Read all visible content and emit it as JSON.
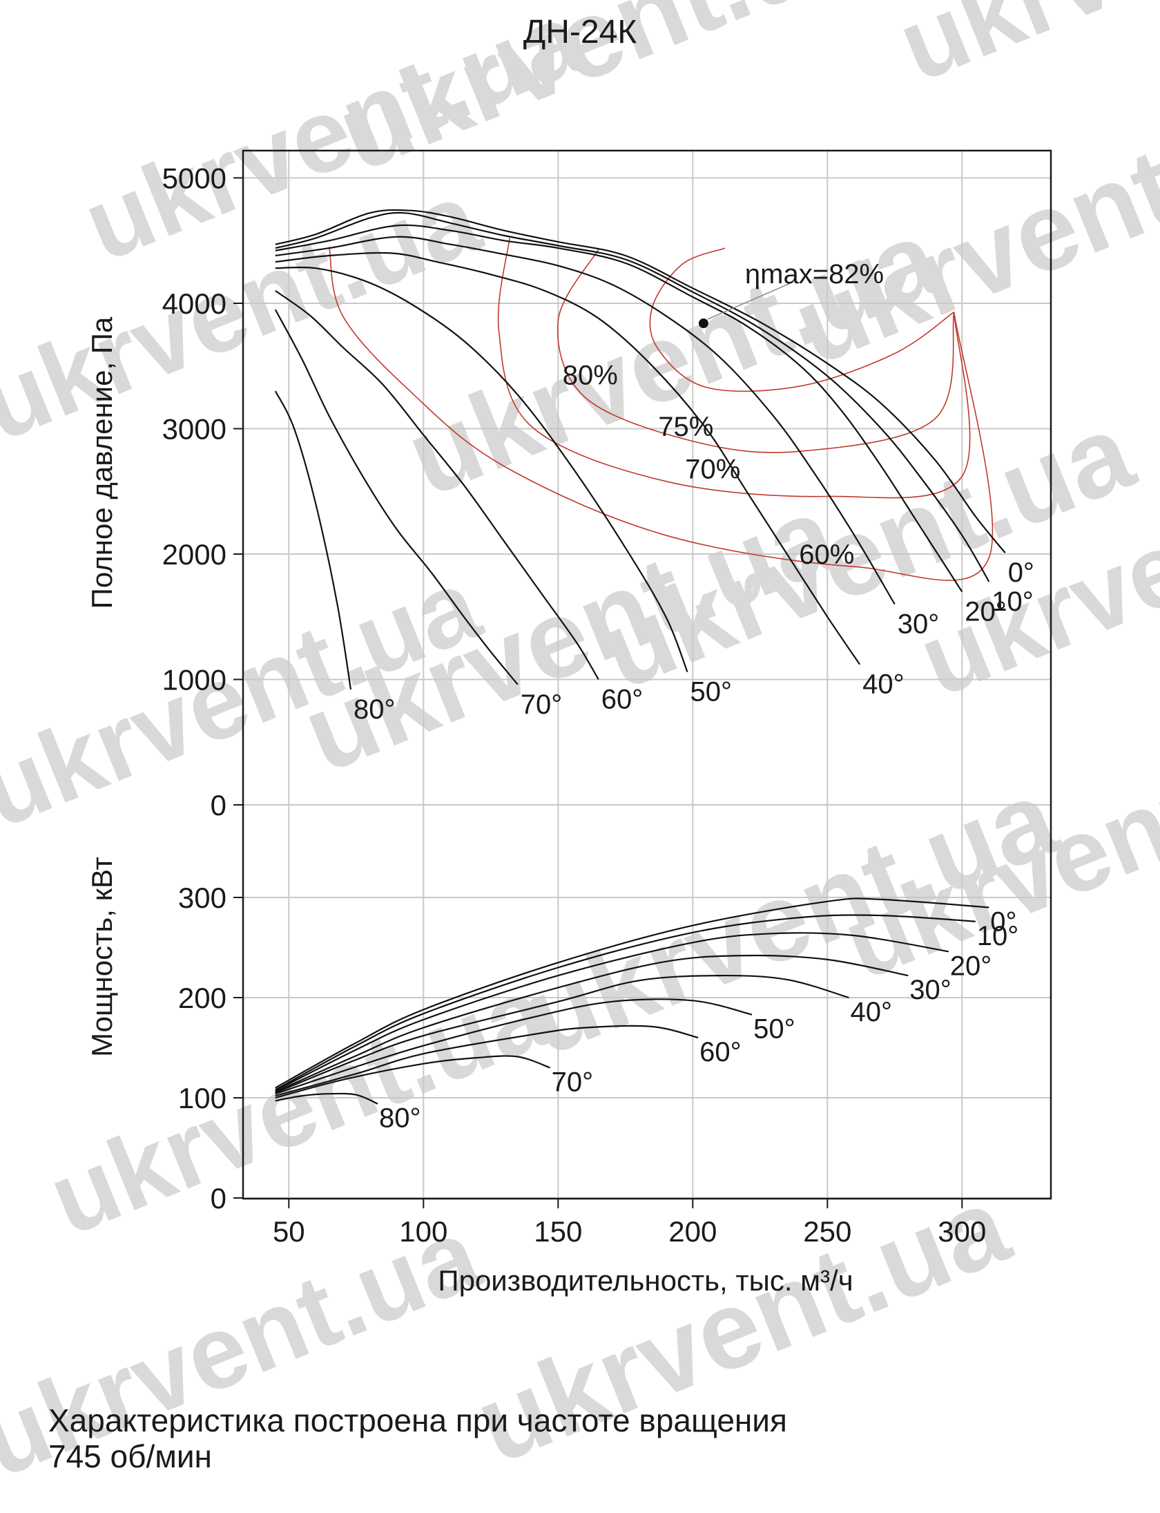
{
  "chart_data": {
    "type": "line",
    "title": "ДН-24К",
    "xlabel": "Производительность, тыс. м³/ч",
    "x_ticks": [
      50,
      100,
      150,
      200,
      250,
      300
    ],
    "xlim": [
      33,
      333
    ],
    "grid": true,
    "pressure": {
      "ylabel": "Полное давление, Па",
      "ylim": [
        0,
        5000
      ],
      "y_ticks": [
        0,
        1000,
        2000,
        3000,
        4000,
        5000
      ],
      "series": [
        {
          "label": "0°",
          "points": [
            [
              45,
              4470
            ],
            [
              60,
              4550
            ],
            [
              80,
              4720
            ],
            [
              95,
              4740
            ],
            [
              110,
              4690
            ],
            [
              130,
              4580
            ],
            [
              150,
              4490
            ],
            [
              175,
              4380
            ],
            [
              200,
              4120
            ],
            [
              225,
              3850
            ],
            [
              250,
              3520
            ],
            [
              270,
              3200
            ],
            [
              290,
              2750
            ],
            [
              305,
              2300
            ],
            [
              316,
              2010
            ]
          ]
        },
        {
          "label": "10°",
          "points": [
            [
              45,
              4440
            ],
            [
              60,
              4520
            ],
            [
              80,
              4680
            ],
            [
              93,
              4720
            ],
            [
              110,
              4640
            ],
            [
              130,
              4540
            ],
            [
              150,
              4460
            ],
            [
              175,
              4350
            ],
            [
              200,
              4090
            ],
            [
              225,
              3800
            ],
            [
              250,
              3420
            ],
            [
              270,
              3000
            ],
            [
              285,
              2600
            ],
            [
              300,
              2150
            ],
            [
              310,
              1780
            ]
          ]
        },
        {
          "label": "20°",
          "points": [
            [
              45,
              4420
            ],
            [
              65,
              4500
            ],
            [
              90,
              4620
            ],
            [
              110,
              4580
            ],
            [
              130,
              4500
            ],
            [
              150,
              4440
            ],
            [
              175,
              4320
            ],
            [
              200,
              4050
            ],
            [
              220,
              3820
            ],
            [
              240,
              3500
            ],
            [
              255,
              3150
            ],
            [
              270,
              2700
            ],
            [
              285,
              2200
            ],
            [
              300,
              1700
            ]
          ]
        },
        {
          "label": "30°",
          "points": [
            [
              45,
              4380
            ],
            [
              65,
              4440
            ],
            [
              90,
              4530
            ],
            [
              110,
              4470
            ],
            [
              130,
              4390
            ],
            [
              150,
              4300
            ],
            [
              170,
              4150
            ],
            [
              190,
              3900
            ],
            [
              210,
              3570
            ],
            [
              230,
              3100
            ],
            [
              245,
              2650
            ],
            [
              260,
              2150
            ],
            [
              275,
              1600
            ]
          ]
        },
        {
          "label": "40°",
          "points": [
            [
              45,
              4330
            ],
            [
              65,
              4380
            ],
            [
              88,
              4400
            ],
            [
              105,
              4330
            ],
            [
              125,
              4230
            ],
            [
              145,
              4100
            ],
            [
              165,
              3880
            ],
            [
              185,
              3500
            ],
            [
              205,
              3000
            ],
            [
              220,
              2500
            ],
            [
              235,
              2000
            ],
            [
              250,
              1500
            ],
            [
              262,
              1120
            ]
          ]
        },
        {
          "label": "50°",
          "points": [
            [
              45,
              4280
            ],
            [
              60,
              4280
            ],
            [
              78,
              4180
            ],
            [
              95,
              4000
            ],
            [
              115,
              3700
            ],
            [
              135,
              3270
            ],
            [
              155,
              2700
            ],
            [
              175,
              2050
            ],
            [
              190,
              1500
            ],
            [
              198,
              1060
            ]
          ]
        },
        {
          "label": "60°",
          "points": [
            [
              45,
              4100
            ],
            [
              58,
              3900
            ],
            [
              70,
              3650
            ],
            [
              85,
              3350
            ],
            [
              100,
              2950
            ],
            [
              115,
              2550
            ],
            [
              130,
              2100
            ],
            [
              145,
              1650
            ],
            [
              157,
              1290
            ],
            [
              165,
              1000
            ]
          ]
        },
        {
          "label": "70°",
          "points": [
            [
              45,
              3950
            ],
            [
              55,
              3550
            ],
            [
              65,
              3100
            ],
            [
              78,
              2600
            ],
            [
              90,
              2200
            ],
            [
              103,
              1850
            ],
            [
              115,
              1500
            ],
            [
              125,
              1220
            ],
            [
              135,
              960
            ]
          ]
        },
        {
          "label": "80°",
          "points": [
            [
              45,
              3300
            ],
            [
              52,
              3000
            ],
            [
              60,
              2400
            ],
            [
              68,
              1600
            ],
            [
              73,
              920
            ]
          ]
        }
      ],
      "efficiency": [
        {
          "label": "80%",
          "points": [
            [
              297,
              3930
            ],
            [
              275,
              3600
            ],
            [
              240,
              3340
            ],
            [
              205,
              3330
            ],
            [
              187,
              3640
            ],
            [
              185,
              3970
            ],
            [
              196,
              4310
            ],
            [
              212,
              4440
            ]
          ]
        },
        {
          "label": "75%",
          "points": [
            [
              297,
              3930
            ],
            [
              290,
              3080
            ],
            [
              240,
              2820
            ],
            [
              200,
              2900
            ],
            [
              160,
              3250
            ],
            [
              150,
              3860
            ],
            [
              165,
              4430
            ]
          ]
        },
        {
          "label": "70%",
          "points": [
            [
              297,
              3930
            ],
            [
              300,
              2620
            ],
            [
              250,
              2460
            ],
            [
              190,
              2580
            ],
            [
              140,
              3020
            ],
            [
              128,
              3780
            ],
            [
              132,
              4520
            ]
          ]
        },
        {
          "label": "60%",
          "points": [
            [
              297,
              3930
            ],
            [
              310,
              1970
            ],
            [
              260,
              1900
            ],
            [
              190,
              2150
            ],
            [
              130,
              2700
            ],
            [
              95,
              3300
            ],
            [
              70,
              3900
            ],
            [
              65,
              4450
            ]
          ]
        }
      ],
      "eta_max_point": [
        204,
        3840
      ],
      "eta_max_label": "ηmax=82%"
    },
    "power": {
      "ylabel": "Мощность, кВт",
      "ylim": [
        0,
        300
      ],
      "y_ticks": [
        0,
        100,
        200,
        300
      ],
      "series": [
        {
          "label": "0°",
          "points": [
            [
              45,
              110
            ],
            [
              75,
              155
            ],
            [
              100,
              188
            ],
            [
              150,
              235
            ],
            [
              200,
              272
            ],
            [
              250,
              296
            ],
            [
              270,
              298
            ],
            [
              310,
              290
            ]
          ]
        },
        {
          "label": "10°",
          "points": [
            [
              45,
              108
            ],
            [
              75,
              152
            ],
            [
              100,
              184
            ],
            [
              150,
              230
            ],
            [
              200,
              265
            ],
            [
              240,
              280
            ],
            [
              270,
              282
            ],
            [
              305,
              276
            ]
          ]
        },
        {
          "label": "20°",
          "points": [
            [
              45,
              107
            ],
            [
              75,
              148
            ],
            [
              100,
              178
            ],
            [
              150,
              222
            ],
            [
              200,
              255
            ],
            [
              230,
              264
            ],
            [
              260,
              262
            ],
            [
              295,
              246
            ]
          ]
        },
        {
          "label": "30°",
          "points": [
            [
              45,
              106
            ],
            [
              75,
              142
            ],
            [
              100,
              170
            ],
            [
              150,
              210
            ],
            [
              190,
              236
            ],
            [
              220,
              242
            ],
            [
              250,
              238
            ],
            [
              280,
              222
            ]
          ]
        },
        {
          "label": "40°",
          "points": [
            [
              45,
              105
            ],
            [
              75,
              138
            ],
            [
              100,
              162
            ],
            [
              150,
              196
            ],
            [
              180,
              217
            ],
            [
              210,
              222
            ],
            [
              235,
              218
            ],
            [
              258,
              200
            ]
          ]
        },
        {
          "label": "50°",
          "points": [
            [
              45,
              104
            ],
            [
              75,
              131
            ],
            [
              100,
              152
            ],
            [
              140,
              180
            ],
            [
              170,
              196
            ],
            [
              200,
              197
            ],
            [
              222,
              183
            ]
          ]
        },
        {
          "label": "60°",
          "points": [
            [
              45,
              102
            ],
            [
              75,
              124
            ],
            [
              100,
              144
            ],
            [
              140,
              163
            ],
            [
              160,
              170
            ],
            [
              185,
              171
            ],
            [
              202,
              160
            ]
          ]
        },
        {
          "label": "70°",
          "points": [
            [
              45,
              100
            ],
            [
              70,
              118
            ],
            [
              100,
              134
            ],
            [
              120,
              140
            ],
            [
              135,
              141
            ],
            [
              147,
              130
            ]
          ]
        },
        {
          "label": "80°",
          "points": [
            [
              45,
              97
            ],
            [
              55,
              102
            ],
            [
              65,
              104
            ],
            [
              75,
              103
            ],
            [
              83,
              94
            ]
          ]
        }
      ]
    }
  },
  "caption": {
    "line1": "Характеристика построена при частоте вращения",
    "line2": "745 об/мин"
  },
  "watermark": "ukrvent.ua"
}
